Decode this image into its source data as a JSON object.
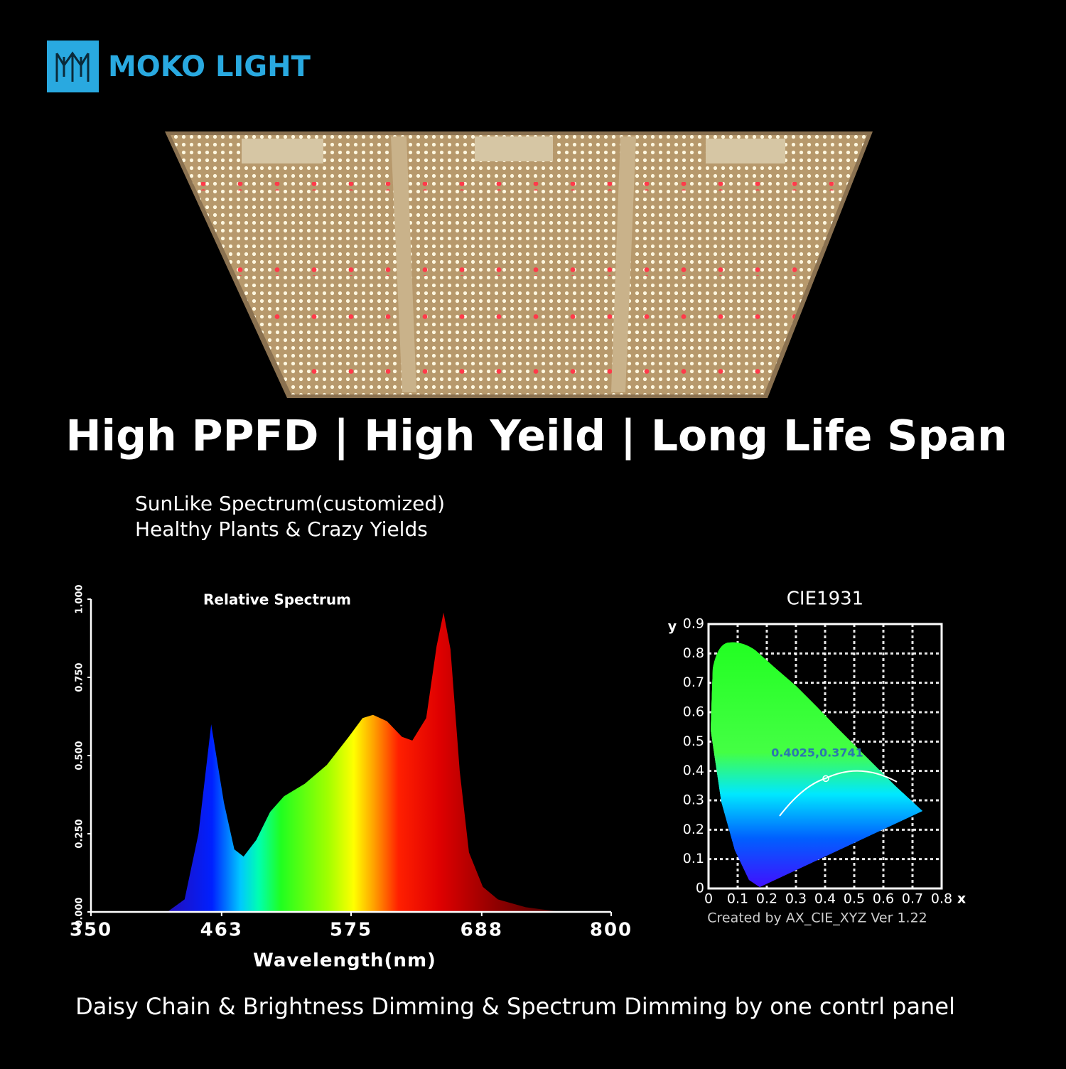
{
  "header": {
    "brand": "MOKO LIGHT",
    "headline": "High PPFD | High Yeild | Long Life Span",
    "sublines": [
      "SunLike Spectrum(customized)",
      "Healthy Plants & Crazy Yields"
    ]
  },
  "chart_data": [
    {
      "type": "area",
      "title": "Relative Spectrum",
      "x_label": "Wavelength(nm)",
      "x": [
        416,
        431,
        443,
        454,
        465,
        474,
        482,
        493,
        505,
        517,
        535,
        554,
        573,
        585,
        594,
        606,
        619,
        628,
        640,
        649,
        655,
        661,
        669,
        677,
        689,
        702,
        726,
        757
      ],
      "values": [
        0,
        0.04,
        0.25,
        0.6,
        0.35,
        0.2,
        0.177,
        0.23,
        0.32,
        0.37,
        0.41,
        0.47,
        0.56,
        0.62,
        0.63,
        0.61,
        0.56,
        0.548,
        0.62,
        0.85,
        0.957,
        0.84,
        0.45,
        0.19,
        0.08,
        0.04,
        0.015,
        0
      ],
      "xlim": [
        350,
        800
      ],
      "xticks": [
        350,
        463,
        575,
        688,
        800
      ],
      "ylim": [
        0,
        1
      ],
      "yticks": [
        {
          "value": 0,
          "label": "0.000"
        },
        {
          "value": 0.25,
          "label": "0.250"
        },
        {
          "value": 0.5,
          "label": "0.500"
        },
        {
          "value": 0.75,
          "label": "0.750"
        },
        {
          "value": 1,
          "label": "1.000"
        }
      ]
    },
    {
      "type": "scatter",
      "title": "CIE1931",
      "x_label": "x",
      "y_label": "y",
      "x": [
        0.4025
      ],
      "values": [
        0.3741
      ],
      "color": "#ffffff",
      "annotation": "0.4025,0.3741",
      "note": "Created by AX_CIE_XYZ Ver 1.22",
      "xlim": [
        0,
        0.8
      ],
      "xticks": [
        0,
        0.1,
        0.2,
        0.3,
        0.4,
        0.5,
        0.6,
        0.7,
        0.8
      ],
      "ylim": [
        0,
        0.9
      ],
      "yticks": [
        0,
        0.1,
        0.2,
        0.3,
        0.4,
        0.5,
        0.6,
        0.7,
        0.8,
        0.9
      ],
      "grid": true
    }
  ],
  "footer": "Daisy Chain & Brightness Dimming & Spectrum Dimming by one contrl panel"
}
